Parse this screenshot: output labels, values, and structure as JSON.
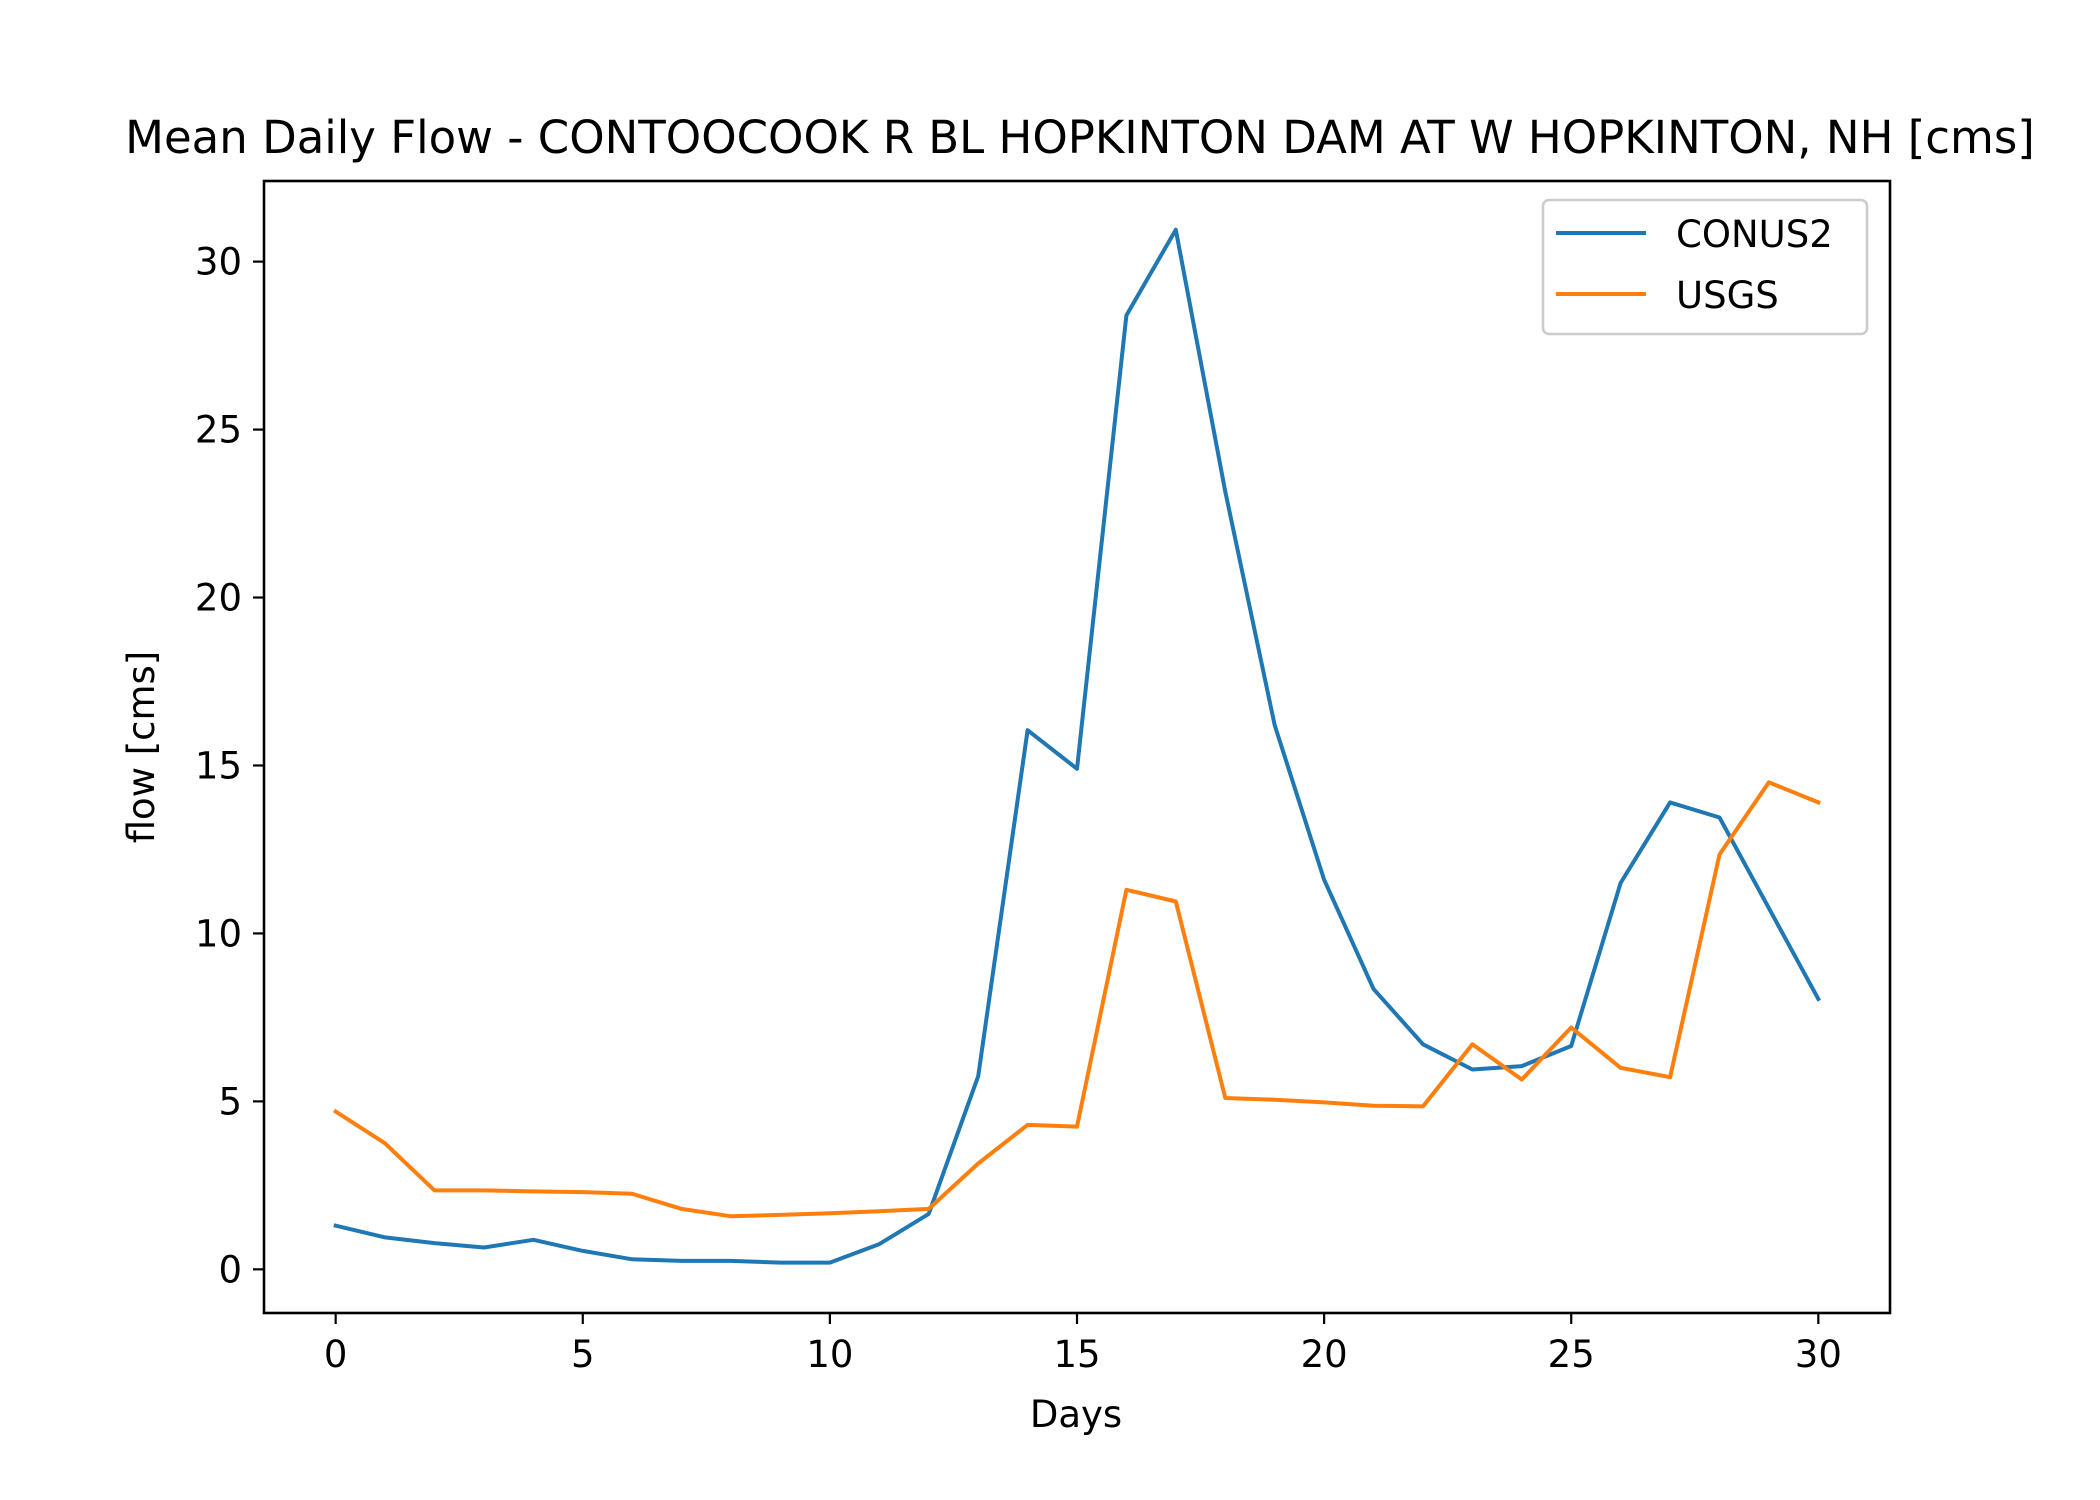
{
  "chart_data": {
    "type": "line",
    "title": "Mean Daily Flow - CONTOOCOOK R BL HOPKINTON DAM AT W HOPKINTON, NH [cms]",
    "xlabel": "Days",
    "ylabel": "flow [cms]",
    "xlim": [
      -1.45,
      31.45
    ],
    "ylim": [
      -1.3,
      32.4
    ],
    "xticks": [
      "0",
      "5",
      "10",
      "15",
      "20",
      "25",
      "30"
    ],
    "yticks": [
      "0",
      "5",
      "10",
      "15",
      "20",
      "25",
      "30"
    ],
    "grid": false,
    "legend_position": "top-right",
    "x": [
      0,
      1,
      2,
      3,
      4,
      5,
      6,
      7,
      8,
      9,
      10,
      11,
      12,
      13,
      14,
      15,
      16,
      17,
      18,
      19,
      20,
      21,
      22,
      23,
      24,
      25,
      26,
      27,
      28,
      29,
      30
    ],
    "series": [
      {
        "name": "CONUS2",
        "color": "#1f77b4",
        "values": [
          1.3,
          0.95,
          0.78,
          0.65,
          0.88,
          0.55,
          0.3,
          0.25,
          0.25,
          0.2,
          0.2,
          0.75,
          1.65,
          5.75,
          16.05,
          14.9,
          28.4,
          30.95,
          23.15,
          16.2,
          11.6,
          8.35,
          6.7,
          5.95,
          6.05,
          6.65,
          11.5,
          13.9,
          13.45,
          10.75,
          8.05
        ]
      },
      {
        "name": "USGS",
        "color": "#ff7f0e",
        "values": [
          4.7,
          3.75,
          2.35,
          2.35,
          2.32,
          2.3,
          2.25,
          1.8,
          1.58,
          1.62,
          1.67,
          1.73,
          1.8,
          3.15,
          4.3,
          4.25,
          11.3,
          10.95,
          5.1,
          5.05,
          4.97,
          4.87,
          4.85,
          6.7,
          5.65,
          7.2,
          6.0,
          5.72,
          12.35,
          14.5,
          13.9
        ]
      }
    ]
  }
}
